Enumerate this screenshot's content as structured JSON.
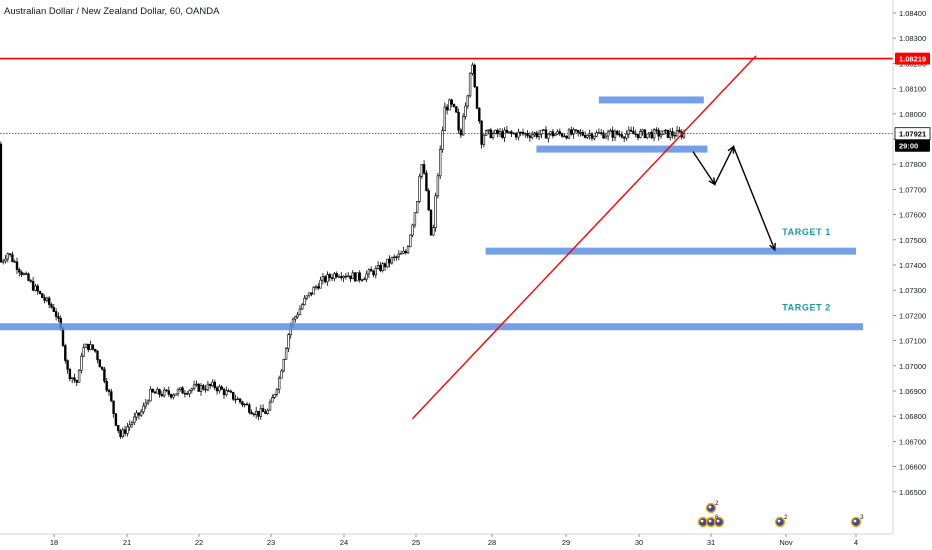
{
  "header": {
    "title": "Australian Dollar / New Zealand Dollar, 60, OANDA"
  },
  "price_badges": {
    "resistance": "1.08219",
    "last": "1.07921",
    "countdown": "29:00"
  },
  "targets": {
    "t1": "TARGET 1",
    "t2": "TARGET 2"
  },
  "events": [
    {
      "date": "31",
      "count": "2"
    },
    {
      "date": "31",
      "count": "6"
    },
    {
      "date": "Nov",
      "count": "2"
    },
    {
      "date": "4",
      "count": "3"
    }
  ],
  "colors": {
    "up": "#ffffff",
    "down": "#000000",
    "wick": "#000000",
    "zone": "#5b8fe3",
    "resistance": "#ff0000",
    "trendline": "#ff0000",
    "target_text": "#1a9aaa",
    "axis_text": "#131722",
    "badge_dark": "#000000"
  },
  "chart_data": {
    "type": "candlestick",
    "title": "Australian Dollar / New Zealand Dollar, 60, OANDA",
    "xlabel": "",
    "ylabel": "",
    "x_ticks": [
      "18",
      "21",
      "22",
      "23",
      "24",
      "25",
      "28",
      "29",
      "30",
      "31",
      "Nov",
      "4"
    ],
    "y_ticks": [
      "1.08400",
      "1.08300",
      "1.08200",
      "1.08100",
      "1.08000",
      "1.07900",
      "1.07800",
      "1.07700",
      "1.07600",
      "1.07500",
      "1.07400",
      "1.07300",
      "1.07200",
      "1.07100",
      "1.07000",
      "1.06900",
      "1.06800",
      "1.06700",
      "1.06600",
      "1.06500"
    ],
    "ylim": [
      1.065,
      1.0845
    ],
    "current_price": 1.07921,
    "resistance_level": 1.08219,
    "zones": [
      {
        "from_day": 29.45,
        "to_day": 30.9,
        "price": 1.08055
      },
      {
        "from_day": 28.6,
        "to_day": 30.95,
        "price": 1.0786
      },
      {
        "from_day": 27.75,
        "to_day": 33.0,
        "price": 1.07455
      },
      {
        "from_day": 15.0,
        "to_day": 33.1,
        "price": 1.07155
      }
    ],
    "trendline": {
      "from": [
        24.95,
        1.0679
      ],
      "to": [
        31.6,
        1.0823
      ]
    },
    "projection_path": [
      [
        30.75,
        1.0785
      ],
      [
        31.05,
        1.0772
      ],
      [
        31.3,
        1.0787
      ],
      [
        31.85,
        1.0746
      ]
    ],
    "annotations": [
      {
        "text": "TARGET 1",
        "day": 31.95,
        "price": 1.0752
      },
      {
        "text": "TARGET 2",
        "day": 31.95,
        "price": 1.0722
      }
    ],
    "ohlc_keypoints": [
      {
        "day": 14.0,
        "price": 1.0788
      },
      {
        "day": 14.2,
        "price": 1.0775
      },
      {
        "day": 14.35,
        "price": 1.0792
      },
      {
        "day": 14.55,
        "price": 1.0762
      },
      {
        "day": 14.75,
        "price": 1.0748
      },
      {
        "day": 15.1,
        "price": 1.0758
      },
      {
        "day": 15.35,
        "price": 1.0738
      },
      {
        "day": 15.55,
        "price": 1.0722
      },
      {
        "day": 15.8,
        "price": 1.0735
      },
      {
        "day": 16.1,
        "price": 1.0745
      },
      {
        "day": 16.4,
        "price": 1.0748
      },
      {
        "day": 16.7,
        "price": 1.0735
      },
      {
        "day": 17.0,
        "price": 1.073
      },
      {
        "day": 17.35,
        "price": 1.0745
      },
      {
        "day": 17.6,
        "price": 1.0735
      },
      {
        "day": 17.8,
        "price": 1.0728
      },
      {
        "day": 18.0,
        "price": 1.0722
      },
      {
        "day": 18.3,
        "price": 1.0712
      },
      {
        "day": 18.5,
        "price": 1.0698
      },
      {
        "day": 18.75,
        "price": 1.0695
      },
      {
        "day": 18.95,
        "price": 1.0693
      },
      {
        "day": 19.1,
        "price": 1.0706
      },
      {
        "day": 19.35,
        "price": 1.0708
      },
      {
        "day": 19.65,
        "price": 1.0706
      },
      {
        "day": 19.95,
        "price": 1.0698
      },
      {
        "day": 20.25,
        "price": 1.0688
      },
      {
        "day": 20.5,
        "price": 1.0678
      },
      {
        "day": 20.7,
        "price": 1.0672
      },
      {
        "day": 21.0,
        "price": 1.0676
      },
      {
        "day": 21.2,
        "price": 1.0682
      },
      {
        "day": 21.3,
        "price": 1.0689
      },
      {
        "day": 21.6,
        "price": 1.0689
      },
      {
        "day": 21.9,
        "price": 1.0691
      },
      {
        "day": 22.2,
        "price": 1.0692
      },
      {
        "day": 22.5,
        "price": 1.0687
      },
      {
        "day": 22.8,
        "price": 1.0681
      },
      {
        "day": 22.95,
        "price": 1.0682
      },
      {
        "day": 23.1,
        "price": 1.0695
      },
      {
        "day": 23.25,
        "price": 1.0716
      },
      {
        "day": 23.45,
        "price": 1.0726
      },
      {
        "day": 23.65,
        "price": 1.0733
      },
      {
        "day": 23.9,
        "price": 1.0737
      },
      {
        "day": 24.2,
        "price": 1.0735
      },
      {
        "day": 24.45,
        "price": 1.0738
      },
      {
        "day": 24.65,
        "price": 1.0742
      },
      {
        "day": 24.85,
        "price": 1.0745
      },
      {
        "day": 25.0,
        "price": 1.0765
      },
      {
        "day": 25.15,
        "price": 1.0782
      },
      {
        "day": 25.35,
        "price": 1.0772
      },
      {
        "day": 25.5,
        "price": 1.0757
      },
      {
        "day": 25.6,
        "price": 1.0748
      },
      {
        "day": 25.75,
        "price": 1.0768
      },
      {
        "day": 25.95,
        "price": 1.0788
      },
      {
        "day": 26.1,
        "price": 1.0802
      },
      {
        "day": 26.3,
        "price": 1.0804
      },
      {
        "day": 26.55,
        "price": 1.08
      },
      {
        "day": 26.7,
        "price": 1.0788
      },
      {
        "day": 26.82,
        "price": 1.08
      },
      {
        "day": 27.0,
        "price": 1.0808
      },
      {
        "day": 27.15,
        "price": 1.0822
      },
      {
        "day": 27.25,
        "price": 1.0812
      },
      {
        "day": 27.35,
        "price": 1.0805
      },
      {
        "day": 27.5,
        "price": 1.0795
      },
      {
        "day": 27.58,
        "price": 1.0787
      },
      {
        "day": 27.63,
        "price": 1.0792
      }
    ]
  }
}
